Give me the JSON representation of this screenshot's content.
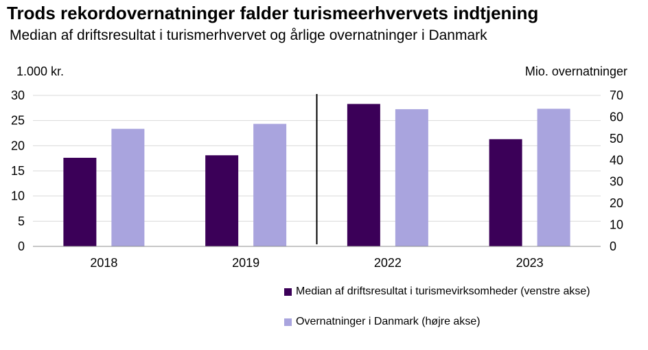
{
  "chart_data": {
    "type": "bar",
    "title": "Trods rekordovernatninger falder turismeerhvervets indtjening",
    "subtitle": "Median af driftsresultat i turismerhvervet og årlige overnatninger i Danmark",
    "ylabel": "1.000 kr.",
    "y2label": "Mio. overnatninger",
    "categories": [
      "2018",
      "2019",
      "2022",
      "2023"
    ],
    "ylim": [
      0,
      30
    ],
    "y2lim": [
      0,
      70
    ],
    "yticks": [
      "0",
      "5",
      "10",
      "15",
      "20",
      "25",
      "30"
    ],
    "y2ticks": [
      "0",
      "10",
      "20",
      "30",
      "40",
      "50",
      "60",
      "70"
    ],
    "grid": true,
    "series": [
      {
        "name": "Median af driftsresultat i turismevirksomheder (venstre akse)",
        "axis": "left",
        "color": "#3b0058",
        "values": [
          17.6,
          18.1,
          28.3,
          21.3
        ]
      },
      {
        "name": "Overnatninger i Danmark (højre akse)",
        "axis": "right",
        "color": "#a9a4de",
        "values": [
          54.5,
          56.8,
          63.6,
          63.8
        ]
      }
    ],
    "separator_after_category": 1,
    "legend_position": "bottom-right"
  }
}
